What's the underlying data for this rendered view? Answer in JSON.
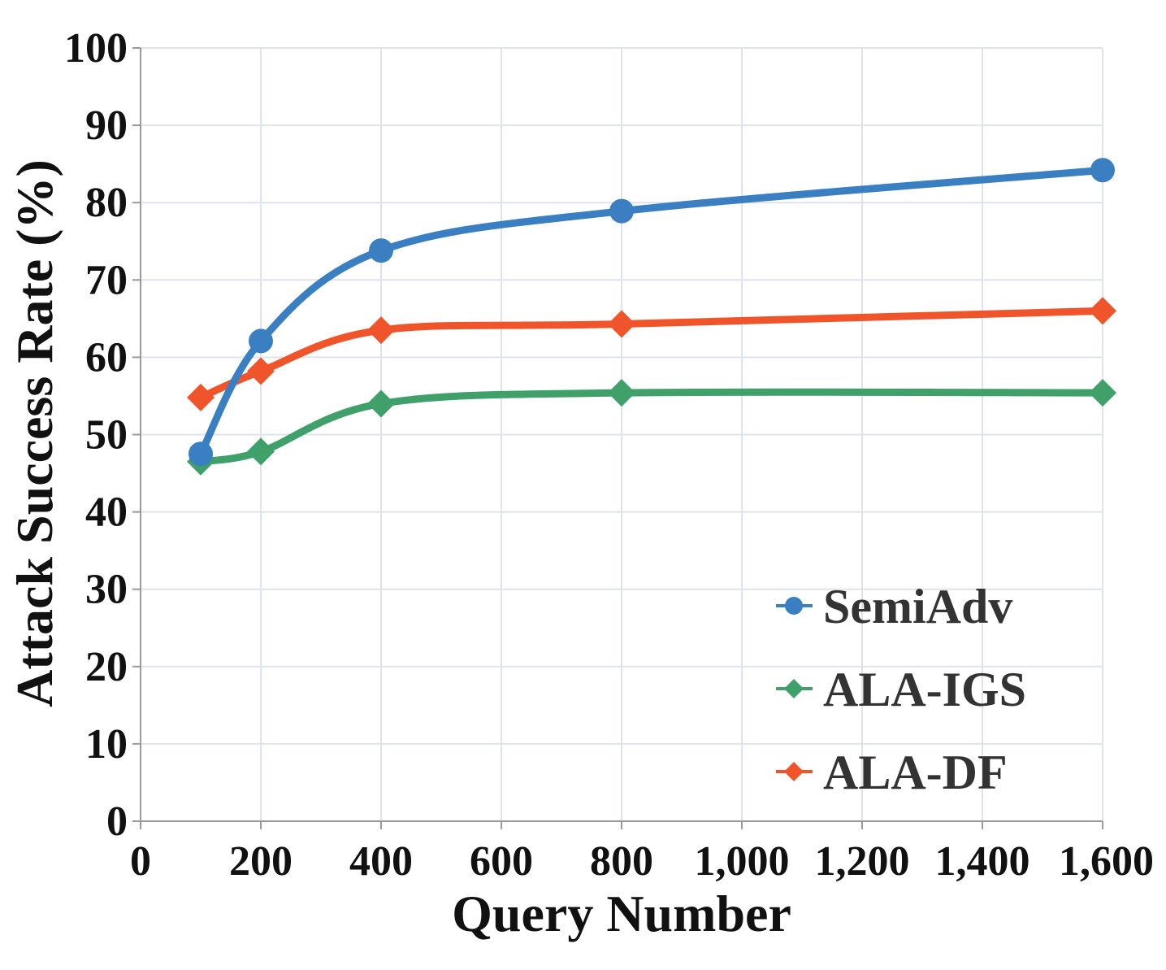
{
  "chart_data": {
    "type": "line",
    "title": "",
    "xlabel": "Query Number",
    "ylabel": "Attack Success Rate (%)",
    "xlim": [
      0,
      1600
    ],
    "ylim": [
      0,
      100
    ],
    "x_ticks": [
      0,
      200,
      400,
      600,
      800,
      1000,
      1200,
      1400,
      1600
    ],
    "x_tick_labels": [
      "0",
      "200",
      "400",
      "600",
      "800",
      "1,000",
      "1,200",
      "1,400",
      "1,600"
    ],
    "y_ticks": [
      0,
      10,
      20,
      30,
      40,
      50,
      60,
      70,
      80,
      90,
      100
    ],
    "y_tick_labels": [
      "0",
      "10",
      "20",
      "30",
      "40",
      "50",
      "60",
      "70",
      "80",
      "90",
      "100"
    ],
    "grid": true,
    "legend_position": "bottom-right",
    "x": [
      100,
      200,
      400,
      800,
      1600
    ],
    "series": [
      {
        "name": "SemiAdv",
        "marker": "circle",
        "color": "#3a7fc1",
        "values": [
          47.5,
          62.1,
          73.8,
          78.9,
          84.2
        ]
      },
      {
        "name": "ALA-IGS",
        "marker": "diamond",
        "color": "#3fa06a",
        "values": [
          46.5,
          47.8,
          54.0,
          55.4,
          55.4
        ]
      },
      {
        "name": "ALA-DF",
        "marker": "diamond",
        "color": "#f0542a",
        "values": [
          54.8,
          58.2,
          63.5,
          64.3,
          66.0
        ]
      }
    ]
  }
}
